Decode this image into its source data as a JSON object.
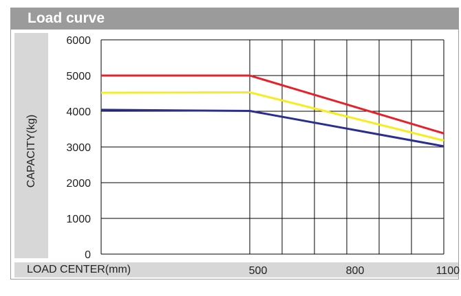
{
  "chart_data": {
    "type": "line",
    "title": "Load curve",
    "xlabel": "LOAD CENTER(mm)",
    "ylabel": "CAPACITY(kg)",
    "x_ticks": [
      "500",
      "800",
      "1100"
    ],
    "y_ticks": [
      "6000",
      "5000",
      "4000",
      "3000",
      "2000",
      "1000",
      "0"
    ],
    "ylim": [
      0,
      6000
    ],
    "grid": true,
    "series": [
      {
        "color": "#e8202a",
        "x": [
          0,
          500,
          1100
        ],
        "y": [
          5000,
          5000,
          3380
        ]
      },
      {
        "color": "#f8ec20",
        "x": [
          0,
          500,
          1100
        ],
        "y": [
          4520,
          4530,
          3180
        ]
      },
      {
        "color": "#2a2f8f",
        "x": [
          0,
          500,
          1100
        ],
        "y": [
          4040,
          4010,
          3020
        ]
      }
    ]
  }
}
